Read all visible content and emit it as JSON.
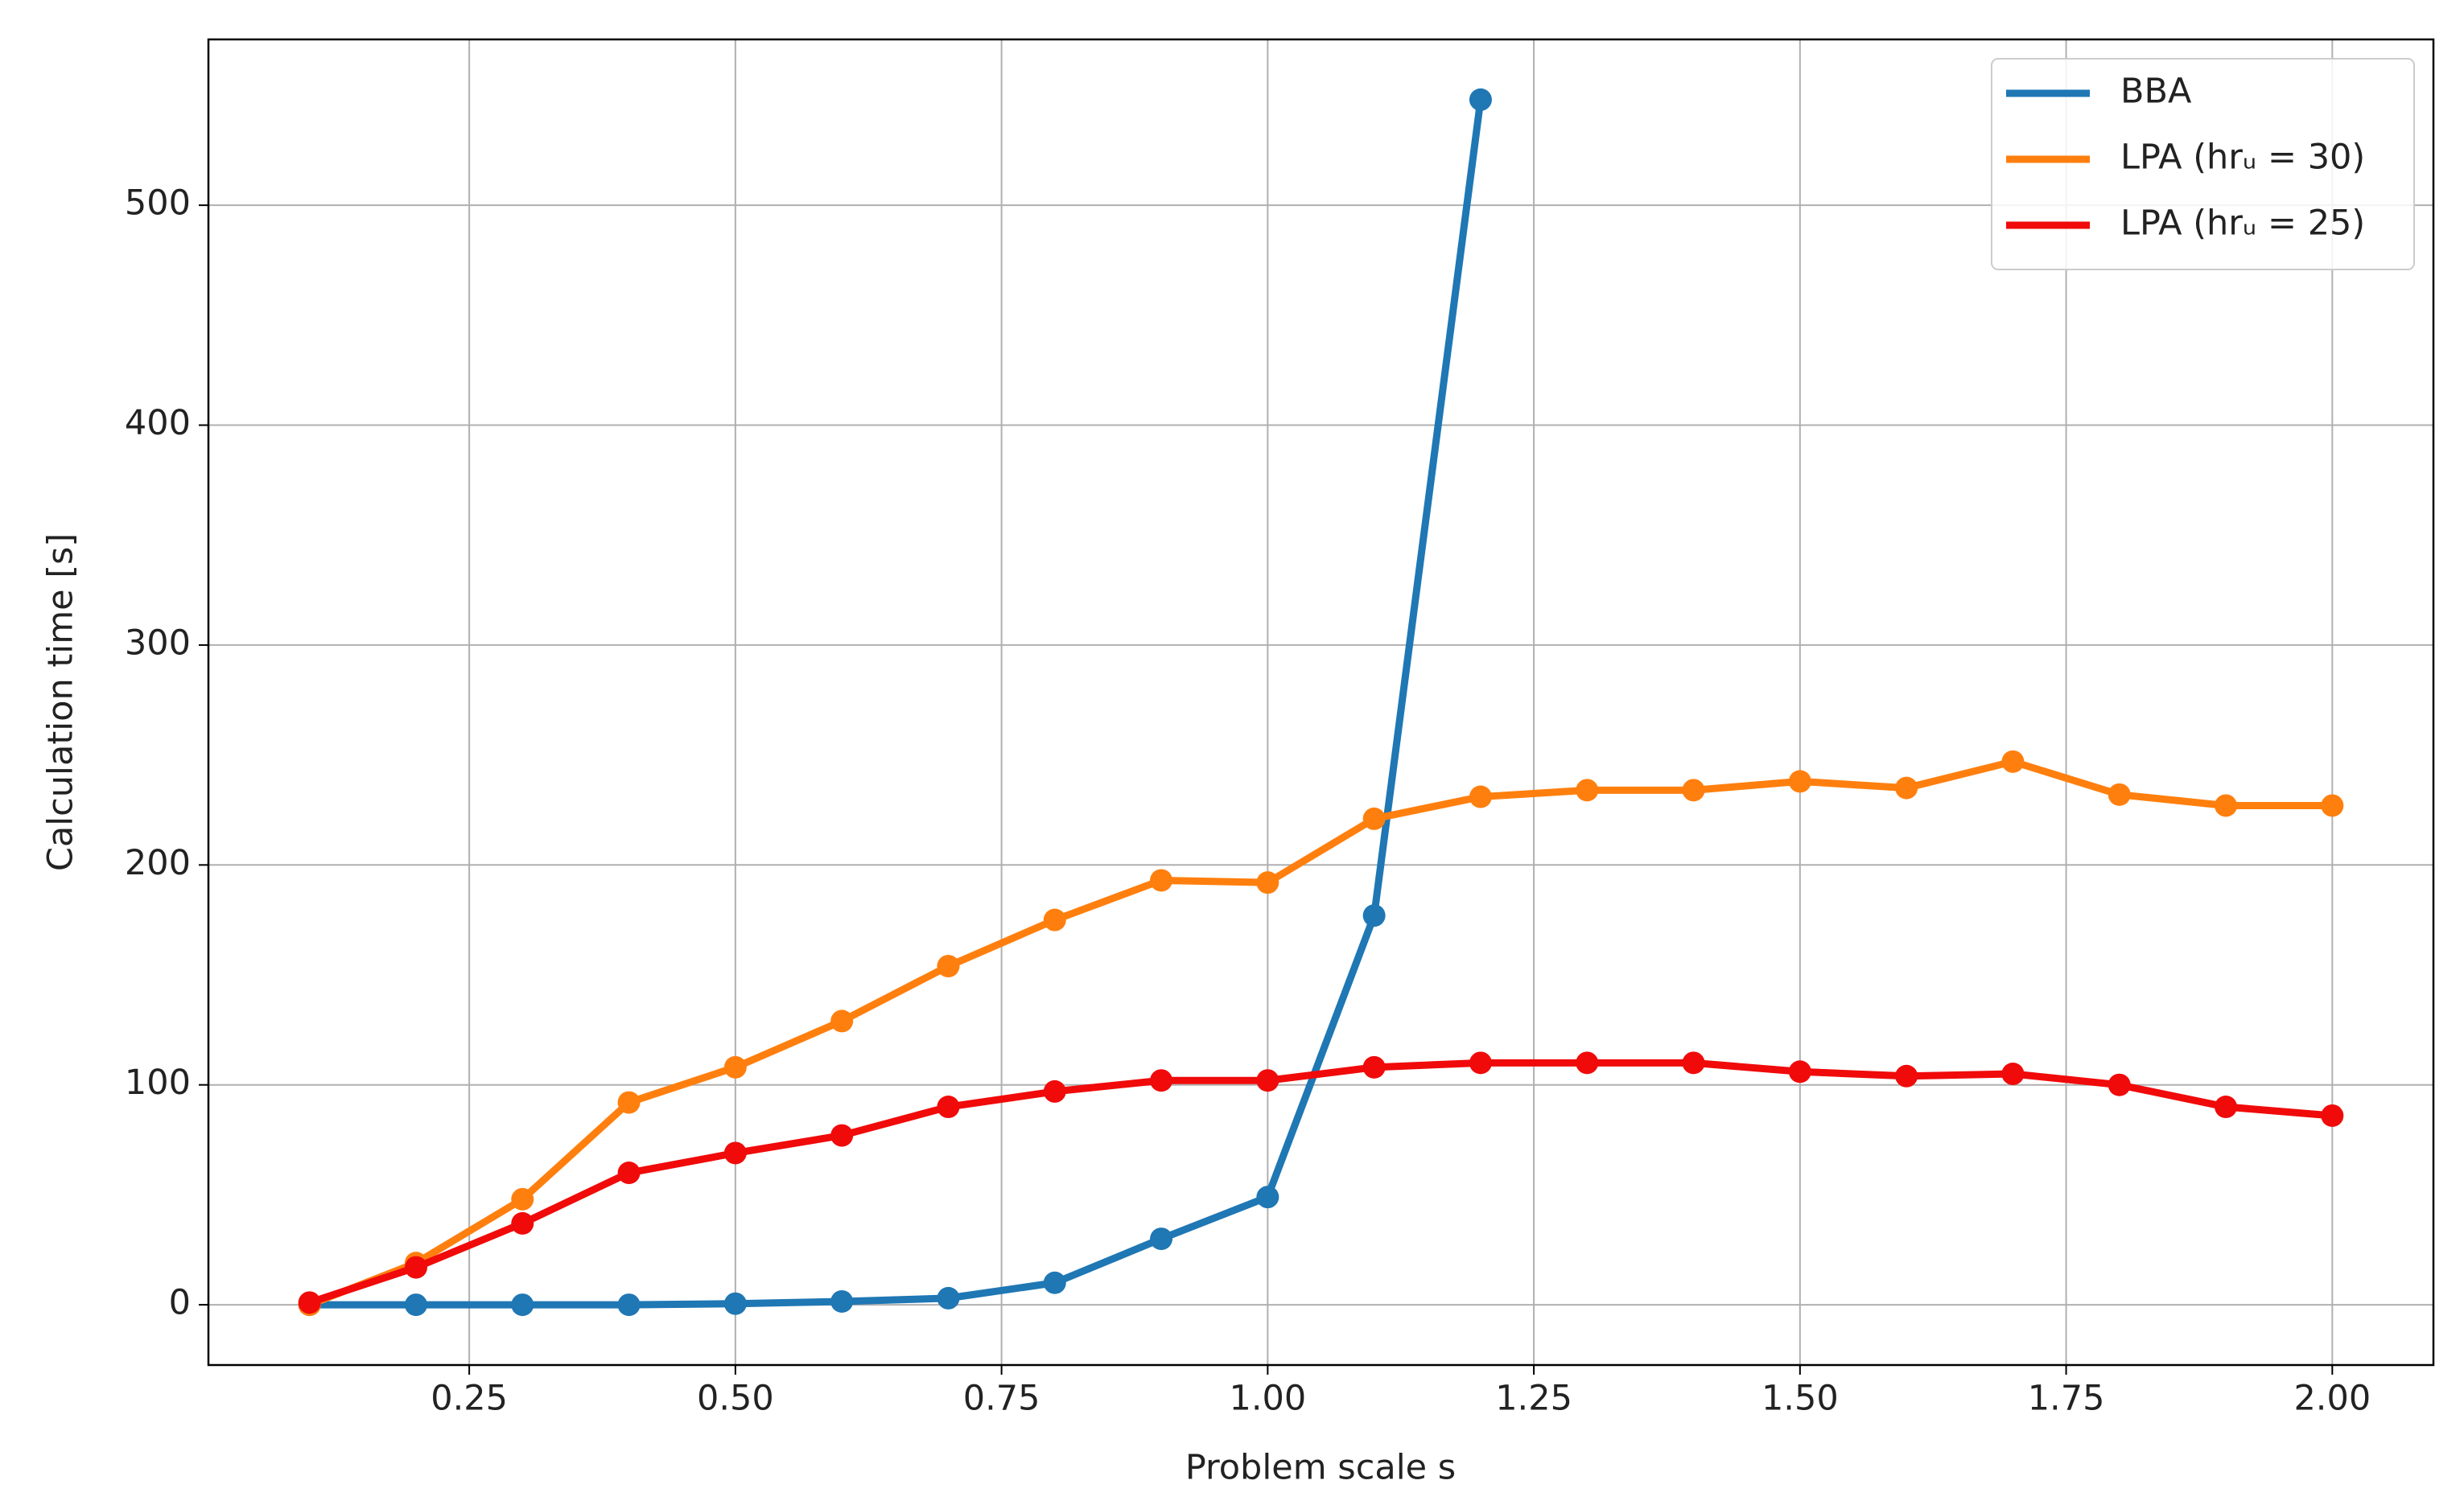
{
  "chart_data": {
    "type": "line",
    "xlabel": "Problem scale s",
    "ylabel": "Calculation time [s]",
    "x": [
      0.1,
      0.2,
      0.3,
      0.4,
      0.5,
      0.6,
      0.7,
      0.8,
      0.9,
      1.0,
      1.1,
      1.2,
      1.3,
      1.4,
      1.5,
      1.6,
      1.7,
      1.8,
      1.9,
      2.0
    ],
    "series": [
      {
        "name": "BBA",
        "color": "#1f77b4",
        "values": [
          0,
          0,
          0,
          0,
          0.5,
          1.5,
          3,
          10,
          30,
          49,
          177,
          548,
          null,
          null,
          null,
          null,
          null,
          null,
          null,
          null
        ]
      },
      {
        "name": "LPA (hrᵤ = 30)",
        "color": "#ff7f0e",
        "values": [
          0,
          19,
          48,
          92,
          108,
          129,
          154,
          175,
          193,
          192,
          221,
          231,
          234,
          234,
          238,
          235,
          247,
          232,
          227,
          227
        ]
      },
      {
        "name": "LPA (hrᵤ = 25)",
        "color": "#f00a0a",
        "values": [
          1,
          17,
          37,
          60,
          69,
          77,
          90,
          97,
          102,
          102,
          108,
          110,
          110,
          110,
          106,
          104,
          105,
          100,
          90,
          86
        ]
      }
    ],
    "xlim": [
      0.005,
      2.095
    ],
    "ylim": [
      -27.4,
      575.4
    ],
    "xticks": [
      0.25,
      {
        "value": 0.5,
        "label": "0.50"
      },
      0.75,
      {
        "value": 1.0,
        "label": "1.00"
      },
      1.25,
      {
        "value": 1.5,
        "label": "1.50"
      },
      1.75,
      {
        "value": 2.0,
        "label": "2.00"
      }
    ],
    "yticks": [
      0,
      100,
      200,
      300,
      400,
      500
    ],
    "grid": true,
    "legend": "upper right"
  }
}
